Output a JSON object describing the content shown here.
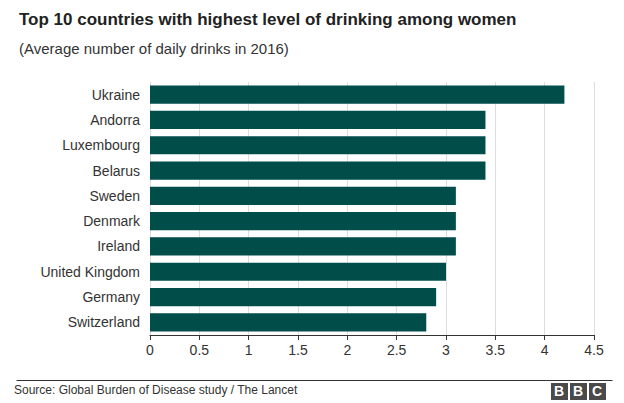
{
  "chart_data": {
    "type": "bar",
    "title": "Top 10 countries with highest level of drinking among women",
    "subtitle": "(Average number of daily drinks in 2016)",
    "source": "Source: Global Burden of Disease study / The Lancet",
    "credit": "BBC",
    "orientation": "horizontal",
    "categories": [
      "Ukraine",
      "Andorra",
      "Luxembourg",
      "Belarus",
      "Sweden",
      "Denmark",
      "Ireland",
      "United Kingdom",
      "Germany",
      "Switzerland"
    ],
    "values": [
      4.2,
      3.4,
      3.4,
      3.4,
      3.1,
      3.1,
      3.1,
      3.0,
      2.9,
      2.8
    ],
    "color": "#004d4a",
    "xlim": [
      0,
      4.5
    ],
    "xticks": [
      0,
      0.5,
      1,
      1.5,
      2,
      2.5,
      3,
      3.5,
      4,
      4.5
    ],
    "grid": true
  }
}
